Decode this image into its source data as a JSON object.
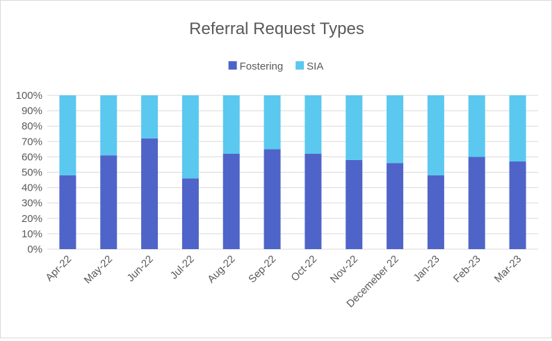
{
  "chart_data": {
    "type": "bar",
    "stacked": "percent",
    "title": "Referral Request Types",
    "legend_position": "top",
    "categories": [
      "Apr-22",
      "May-22",
      "Jun-22",
      "Jul-22",
      "Aug-22",
      "Sep-22",
      "Oct-22",
      "Nov-22",
      "Decemeber 22",
      "Jan-23",
      "Feb-23",
      "Mar-23"
    ],
    "series": [
      {
        "name": "Fostering",
        "color": "#4f64c8",
        "values": [
          48,
          61,
          72,
          46,
          62,
          65,
          62,
          58,
          56,
          48,
          60,
          57
        ]
      },
      {
        "name": "SIA",
        "color": "#5bc8ef",
        "values": [
          52,
          39,
          28,
          54,
          38,
          35,
          38,
          42,
          44,
          52,
          40,
          43
        ]
      }
    ],
    "ylim": [
      0,
      100
    ],
    "yticks": [
      "0%",
      "10%",
      "20%",
      "30%",
      "40%",
      "50%",
      "60%",
      "70%",
      "80%",
      "90%",
      "100%"
    ],
    "grid": true,
    "gridline_color": "#d9d9d9"
  }
}
